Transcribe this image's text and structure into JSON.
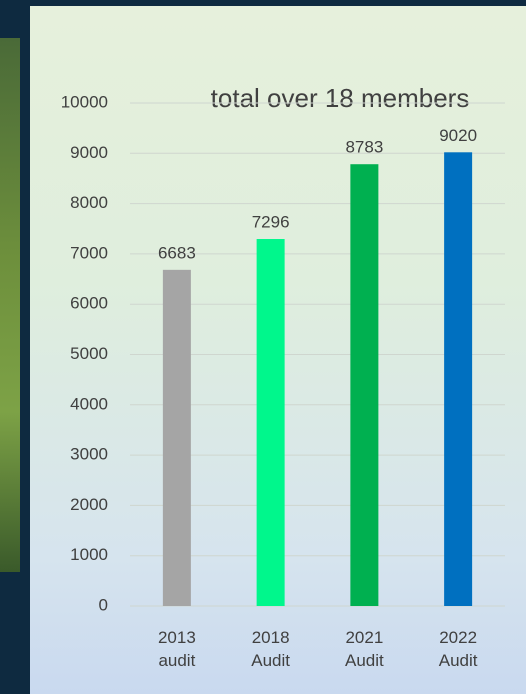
{
  "chart_data": {
    "type": "bar",
    "title": "total over 18 members",
    "categories": [
      "2013 audit",
      "2018 Audit",
      "2021 Audit",
      "2022 Audit"
    ],
    "values": [
      6683,
      7296,
      8783,
      9020
    ],
    "colors": [
      "#a5a5a5",
      "#00f78c",
      "#00b050",
      "#0070c0"
    ],
    "ylim": [
      0,
      10000
    ],
    "yticks": [
      0,
      1000,
      2000,
      3000,
      4000,
      5000,
      6000,
      7000,
      8000,
      9000,
      10000
    ],
    "grid": true
  }
}
